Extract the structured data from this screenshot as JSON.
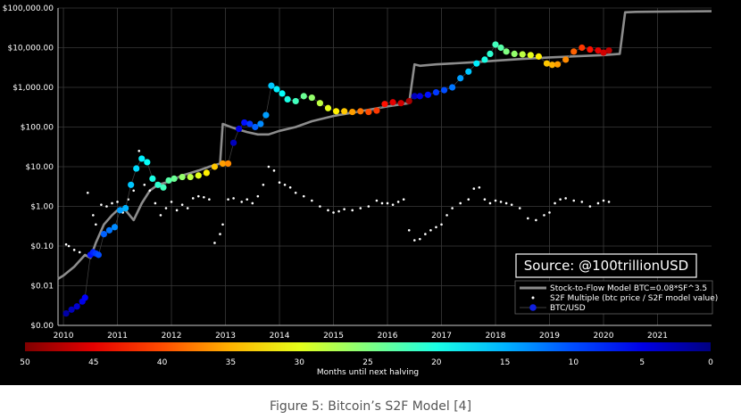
{
  "caption": "Figure 5: Bitcoin’s S2F Model [4]",
  "source_label": "Source: @100trillionUSD",
  "colors": {
    "background": "#000000",
    "model_line": "#8c8c8c",
    "grid": "#3a3a3a",
    "text": "#ffffff",
    "multiple_dots": "#ffffff",
    "caption_text": "#555555"
  },
  "chart_data": {
    "type": "scatter",
    "title": "",
    "xlabel": "",
    "ylabel": "",
    "y_scale": "log",
    "xlim": [
      2009.9,
      2022.0
    ],
    "ylim": [
      0.001,
      100000
    ],
    "grid": true,
    "legend_position": "bottom-right",
    "x_ticks": [
      2010,
      2011,
      2012,
      2013,
      2014,
      2015,
      2016,
      2017,
      2018,
      2019,
      2020,
      2021
    ],
    "y_ticks": [
      {
        "value": 100000,
        "label": "$100,000.00"
      },
      {
        "value": 10000,
        "label": "$10,000.00"
      },
      {
        "value": 1000,
        "label": "$1,000.00"
      },
      {
        "value": 100,
        "label": "$100.00"
      },
      {
        "value": 10,
        "label": "$10.00"
      },
      {
        "value": 1,
        "label": "$1.00"
      },
      {
        "value": 0.1,
        "label": "$0.10"
      },
      {
        "value": 0.01,
        "label": "$0.01"
      },
      {
        "value": 0.001,
        "label": "$0.00"
      }
    ],
    "legend": [
      {
        "label": "Stock-to-Flow Model BTC=0.08*SF^3.5",
        "marker": "line"
      },
      {
        "label": "S2F Multiple (btc price / S2F model value)",
        "marker": "small-dot"
      },
      {
        "label": "BTC/USD",
        "marker": "colored-dot"
      }
    ],
    "colorbar": {
      "label": "Months until next halving",
      "min": 0,
      "max": 50,
      "ticks": [
        50,
        45,
        40,
        35,
        30,
        25,
        20,
        15,
        10,
        5,
        0
      ]
    },
    "series": [
      {
        "name": "Stock-to-Flow Model BTC=0.08*SF^3.5",
        "type": "line",
        "x": [
          2009.9,
          2010.0,
          2010.2,
          2010.4,
          2010.5,
          2010.6,
          2010.75,
          2010.9,
          2011.0,
          2011.15,
          2011.3,
          2011.45,
          2011.6,
          2011.75,
          2011.9,
          2012.0,
          2012.2,
          2012.5,
          2012.7,
          2012.9,
          2012.95,
          2013.1,
          2013.2,
          2013.4,
          2013.6,
          2013.8,
          2014.0,
          2014.3,
          2014.6,
          2015.0,
          2015.5,
          2016.0,
          2016.4,
          2016.5,
          2016.6,
          2016.9,
          2017.2,
          2017.6,
          2018.0,
          2018.5,
          2019.0,
          2019.5,
          2020.0,
          2020.3,
          2020.4,
          2020.6,
          2021.0,
          2021.5,
          2022.0
        ],
        "y": [
          0.015,
          0.018,
          0.03,
          0.06,
          0.05,
          0.12,
          0.35,
          0.6,
          0.8,
          0.8,
          0.45,
          1.2,
          2.5,
          3.5,
          4,
          4.5,
          6,
          8,
          10,
          12,
          120,
          100,
          90,
          75,
          65,
          65,
          80,
          100,
          140,
          190,
          250,
          330,
          400,
          3800,
          3500,
          3800,
          4000,
          4300,
          4700,
          5200,
          5700,
          6100,
          6500,
          7000,
          78000,
          80000,
          81000,
          82000,
          83000
        ]
      },
      {
        "name": "S2F Multiple (btc price / S2F model value)",
        "type": "scatter",
        "x": [
          2010.05,
          2010.1,
          2010.2,
          2010.3,
          2010.45,
          2010.55,
          2010.6,
          2010.7,
          2010.8,
          2010.9,
          2011.0,
          2011.1,
          2011.2,
          2011.3,
          2011.4,
          2011.5,
          2011.6,
          2011.7,
          2011.8,
          2011.9,
          2012.0,
          2012.1,
          2012.2,
          2012.3,
          2012.4,
          2012.5,
          2012.6,
          2012.7,
          2012.8,
          2012.9,
          2012.95,
          2013.05,
          2013.15,
          2013.3,
          2013.4,
          2013.5,
          2013.6,
          2013.7,
          2013.8,
          2013.9,
          2014.0,
          2014.1,
          2014.2,
          2014.3,
          2014.45,
          2014.6,
          2014.75,
          2014.9,
          2015.0,
          2015.1,
          2015.2,
          2015.35,
          2015.5,
          2015.65,
          2015.8,
          2015.9,
          2016.0,
          2016.1,
          2016.2,
          2016.3,
          2016.4,
          2016.5,
          2016.6,
          2016.7,
          2016.8,
          2016.9,
          2017.0,
          2017.1,
          2017.2,
          2017.35,
          2017.5,
          2017.6,
          2017.7,
          2017.8,
          2017.9,
          2018.0,
          2018.1,
          2018.2,
          2018.3,
          2018.45,
          2018.6,
          2018.75,
          2018.9,
          2019.0,
          2019.1,
          2019.2,
          2019.3,
          2019.45,
          2019.6,
          2019.75,
          2019.9,
          2020.0,
          2020.1
        ],
        "y": [
          0.11,
          0.1,
          0.08,
          0.07,
          2.2,
          0.6,
          0.35,
          1.1,
          1.0,
          1.2,
          1.3,
          0.7,
          1.5,
          2.5,
          25,
          3.5,
          2.5,
          1.2,
          0.6,
          0.9,
          1.3,
          0.8,
          1.1,
          0.9,
          1.6,
          1.8,
          1.7,
          1.5,
          0.12,
          0.2,
          0.35,
          1.5,
          1.6,
          1.3,
          1.5,
          1.2,
          1.8,
          3.5,
          10,
          8,
          4,
          3.5,
          3,
          2.2,
          1.8,
          1.4,
          1.0,
          0.8,
          0.7,
          0.75,
          0.85,
          0.8,
          0.9,
          1.0,
          1.4,
          1.2,
          1.2,
          1.1,
          1.3,
          1.5,
          0.25,
          0.14,
          0.15,
          0.2,
          0.25,
          0.3,
          0.35,
          0.6,
          0.9,
          1.2,
          1.5,
          2.8,
          3.0,
          1.5,
          1.2,
          1.4,
          1.3,
          1.2,
          1.1,
          0.9,
          0.5,
          0.45,
          0.6,
          0.7,
          1.2,
          1.5,
          1.6,
          1.4,
          1.3,
          1.0,
          1.2,
          1.4,
          1.3
        ]
      },
      {
        "name": "BTC/USD",
        "type": "scatter",
        "color_by": "months until next halving",
        "x": [
          2010.05,
          2010.15,
          2010.25,
          2010.35,
          2010.4,
          2010.5,
          2010.55,
          2010.6,
          2010.65,
          2010.75,
          2010.85,
          2010.95,
          2011.05,
          2011.15,
          2011.25,
          2011.35,
          2011.45,
          2011.55,
          2011.65,
          2011.75,
          2011.85,
          2011.95,
          2012.05,
          2012.2,
          2012.35,
          2012.5,
          2012.65,
          2012.8,
          2012.95,
          2013.05,
          2013.15,
          2013.25,
          2013.35,
          2013.45,
          2013.55,
          2013.65,
          2013.75,
          2013.85,
          2013.95,
          2014.05,
          2014.15,
          2014.3,
          2014.45,
          2014.6,
          2014.75,
          2014.9,
          2015.05,
          2015.2,
          2015.35,
          2015.5,
          2015.65,
          2015.8,
          2015.95,
          2016.1,
          2016.25,
          2016.4,
          2016.5,
          2016.6,
          2016.75,
          2016.9,
          2017.05,
          2017.2,
          2017.35,
          2017.5,
          2017.65,
          2017.8,
          2017.9,
          2018.0,
          2018.1,
          2018.2,
          2018.35,
          2018.5,
          2018.65,
          2018.8,
          2018.95,
          2019.05,
          2019.15,
          2019.3,
          2019.45,
          2019.6,
          2019.75,
          2019.9,
          2020.0,
          2020.1
        ],
        "y": [
          0.002,
          0.0025,
          0.003,
          0.004,
          0.005,
          0.06,
          0.07,
          0.065,
          0.06,
          0.2,
          0.25,
          0.3,
          0.8,
          0.9,
          3.5,
          9,
          16,
          13,
          5,
          3.5,
          3,
          4.5,
          5,
          5.5,
          5.5,
          6,
          7,
          10,
          12,
          12,
          40,
          90,
          130,
          120,
          100,
          120,
          200,
          1100,
          900,
          700,
          500,
          450,
          600,
          550,
          400,
          300,
          250,
          250,
          240,
          250,
          240,
          260,
          380,
          420,
          400,
          450,
          600,
          600,
          650,
          750,
          850,
          1000,
          1700,
          2500,
          4000,
          5000,
          7000,
          12000,
          10000,
          8000,
          7000,
          6800,
          6500,
          6000,
          4000,
          3700,
          3800,
          5000,
          8000,
          10000,
          9000,
          8500,
          7500,
          8500
        ],
        "months": [
          48,
          47,
          46,
          45,
          44,
          43,
          42,
          41,
          40,
          39,
          38,
          37,
          36,
          35,
          34,
          33,
          32,
          31,
          30,
          29,
          28,
          27,
          26,
          24,
          22,
          20,
          18,
          16,
          14,
          13,
          47,
          45,
          43,
          41,
          39,
          37,
          36,
          34,
          32,
          31,
          30,
          28,
          26,
          24,
          22,
          20,
          18,
          16,
          14,
          12,
          10,
          9,
          7,
          5,
          4,
          2,
          47,
          45,
          43,
          41,
          40,
          38,
          36,
          34,
          32,
          30,
          29,
          28,
          27,
          25,
          24,
          22,
          20,
          18,
          16,
          15,
          14,
          13,
          11,
          9,
          7,
          5,
          4,
          3
        ]
      }
    ]
  }
}
